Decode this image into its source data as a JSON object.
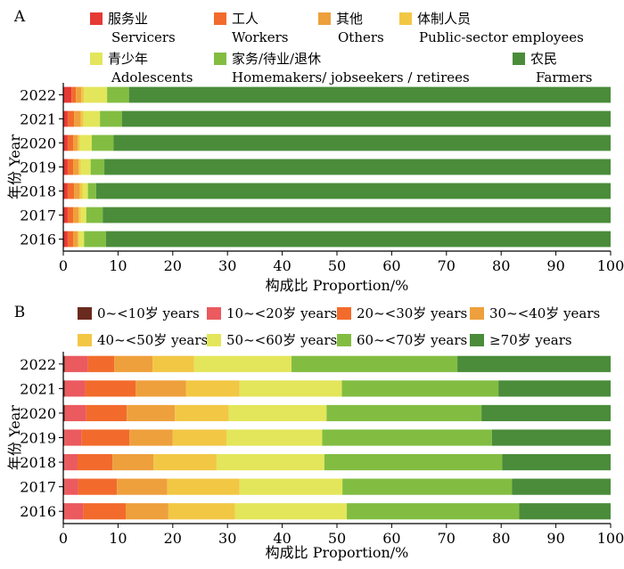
{
  "chart_data": [
    {
      "panel_label": "A",
      "type": "bar",
      "orientation": "horizontal",
      "stacked": true,
      "categories": [
        "2022",
        "2021",
        "2020",
        "2019",
        "2018",
        "2017",
        "2016"
      ],
      "series": [
        {
          "name": "服务业 Servicers",
          "color": "#e53935",
          "values": [
            1.5,
            0.8,
            0.8,
            0.8,
            0.8,
            0.8,
            0.8
          ]
        },
        {
          "name": "工人 Workers",
          "color": "#f26b2c",
          "values": [
            0.8,
            1.2,
            1.0,
            1.0,
            1.2,
            1.0,
            1.0
          ]
        },
        {
          "name": "其他 Others",
          "color": "#eea03c",
          "values": [
            1.0,
            1.2,
            0.8,
            1.0,
            1.0,
            1.0,
            0.8
          ]
        },
        {
          "name": "体制人员 Public-sector employees",
          "color": "#f2c744",
          "values": [
            0.5,
            0.5,
            0.4,
            0.4,
            0.5,
            0.4,
            0.3
          ]
        },
        {
          "name": "青少年 Adolescents",
          "color": "#e3e65a",
          "values": [
            4.2,
            3.0,
            2.2,
            1.8,
            1.0,
            1.0,
            0.9
          ]
        },
        {
          "name": "家务/待业/退休 Homemakers/ jobseekers / retirees",
          "color": "#82bd42",
          "values": [
            4.0,
            4.0,
            4.0,
            2.5,
            1.5,
            3.0,
            4.0
          ]
        },
        {
          "name": "农民 Farmers",
          "color": "#4a8c3a",
          "values": [
            88.0,
            89.3,
            90.8,
            92.5,
            94.0,
            92.8,
            92.2
          ]
        }
      ],
      "xlabel": "构成比 Proportion/%",
      "ylabel": "年份 Year",
      "xlim": [
        0,
        100
      ],
      "xticks": [
        "0",
        "10",
        "20",
        "30",
        "40",
        "50",
        "60",
        "70",
        "80",
        "90",
        "100"
      ],
      "legend_placement": "top",
      "grid": false
    },
    {
      "panel_label": "B",
      "type": "bar",
      "orientation": "horizontal",
      "stacked": true,
      "categories": [
        "2022",
        "2021",
        "2020",
        "2019",
        "2018",
        "2017",
        "2016"
      ],
      "series": [
        {
          "name": "0~<10岁 years",
          "color": "#6b2a1e",
          "values": [
            0.3,
            0.3,
            0.3,
            0.2,
            0.2,
            0.2,
            0.2
          ]
        },
        {
          "name": "10~<20岁 years",
          "color": "#ea5a5f",
          "values": [
            4.2,
            3.7,
            3.9,
            3.1,
            2.4,
            2.5,
            3.4
          ]
        },
        {
          "name": "20~<30岁 years",
          "color": "#f26b2c",
          "values": [
            4.8,
            9.2,
            7.4,
            8.8,
            6.4,
            7.1,
            7.8
          ]
        },
        {
          "name": "30~<40岁 years",
          "color": "#eea03c",
          "values": [
            7.0,
            9.2,
            8.8,
            7.9,
            7.5,
            9.2,
            7.8
          ]
        },
        {
          "name": "40~<50岁 years",
          "color": "#f2c744",
          "values": [
            7.6,
            9.8,
            9.8,
            9.8,
            11.5,
            13.2,
            12.2
          ]
        },
        {
          "name": "50~<60岁 years",
          "color": "#e3e65a",
          "values": [
            17.8,
            18.7,
            17.9,
            17.5,
            19.7,
            18.8,
            20.4
          ]
        },
        {
          "name": "60~<70岁 years",
          "color": "#82bd42",
          "values": [
            30.3,
            28.6,
            28.3,
            31.0,
            32.5,
            31.0,
            31.5
          ]
        },
        {
          "name": "≥70岁 years",
          "color": "#4a8c3a",
          "values": [
            28.0,
            20.5,
            23.6,
            21.7,
            19.8,
            18.0,
            16.7
          ]
        }
      ],
      "xlabel": "构成比 Proportion/%",
      "ylabel": "年份 Year",
      "xlim": [
        0,
        100
      ],
      "xticks": [
        "0",
        "10",
        "20",
        "30",
        "40",
        "50",
        "60",
        "70",
        "80",
        "90",
        "100"
      ],
      "legend_placement": "top",
      "grid": false
    }
  ]
}
